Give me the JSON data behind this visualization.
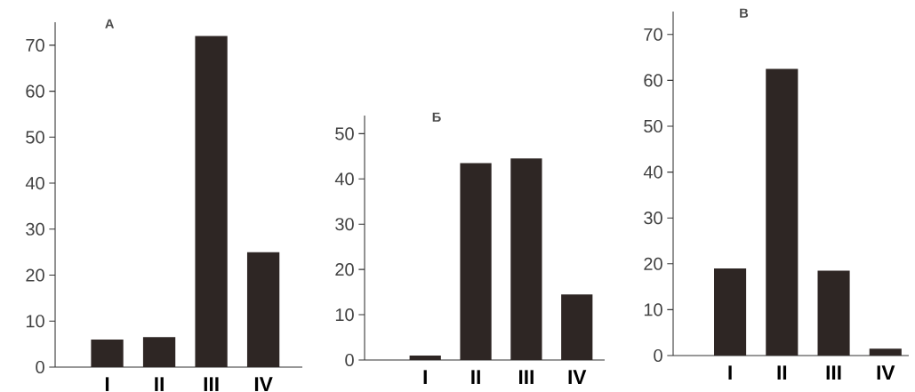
{
  "chart_data": [
    {
      "type": "bar",
      "title": "А",
      "categories": [
        "I",
        "II",
        "III",
        "IV"
      ],
      "values": [
        6,
        6.5,
        72,
        25
      ],
      "color": "#2e2624",
      "ylim": [
        0,
        75
      ],
      "yticks": [
        0,
        10,
        20,
        30,
        40,
        50,
        60,
        70
      ]
    },
    {
      "type": "bar",
      "title": "Б",
      "categories": [
        "I",
        "II",
        "III",
        "IV"
      ],
      "values": [
        1,
        43.5,
        44.5,
        14.5
      ],
      "color": "#2e2624",
      "ylim": [
        0,
        54
      ],
      "yticks": [
        0,
        10,
        20,
        30,
        40,
        50
      ]
    },
    {
      "type": "bar",
      "title": "В",
      "categories": [
        "I",
        "II",
        "III",
        "IV"
      ],
      "values": [
        19,
        62.5,
        18.5,
        1.5
      ],
      "color": "#2e2624",
      "ylim": [
        0,
        75
      ],
      "yticks": [
        0,
        10,
        20,
        30,
        40,
        50,
        60,
        70
      ]
    }
  ]
}
